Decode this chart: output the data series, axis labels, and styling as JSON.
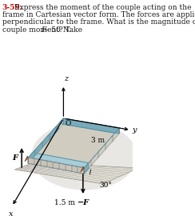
{
  "title_line1": "3-59.",
  "label_F": "F",
  "label_negF": "−F",
  "label_3m": "3 m",
  "label_1p5m": "1.5 m",
  "label_30": "30°",
  "label_x": "x",
  "label_y": "y",
  "label_z": "z",
  "label_O": "O",
  "bg_color": "#ffffff",
  "frame_top_color": "#a8ccd8",
  "frame_side_color": "#7aabba",
  "frame_inner_color": "#d0e8f0",
  "shadow_color": "#d8d4cc",
  "ground_color": "#e8e4d8",
  "support_color": "#b87040",
  "text_color": "#1a1a1a",
  "red_color": "#cc0000",
  "hatch_color": "#666666",
  "axis_color": "#000000",
  "rail_beam_color": "#6aabb8"
}
